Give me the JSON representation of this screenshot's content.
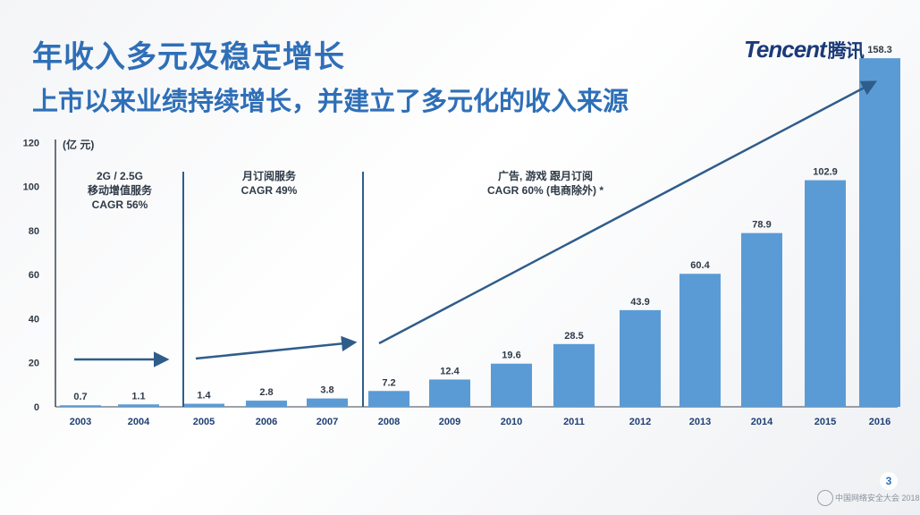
{
  "header": {
    "title": "年收入多元及稳定增长",
    "subtitle": "上市以来业绩持续增长，并建立了多元化的收入来源"
  },
  "logo": {
    "latin": "Tencent",
    "cn": "腾讯"
  },
  "page_number": "3",
  "footer": {
    "text": "中国网络安全大会 2018"
  },
  "colors": {
    "bar": "#5b9bd5",
    "accent": "#2e6fb7",
    "arrow": "#2f5d8a",
    "text": "#2f3a47"
  },
  "chart_data": {
    "type": "bar",
    "title": "",
    "xlabel": "",
    "ylabel": "(亿 元)",
    "ylim": [
      0,
      120
    ],
    "yticks": [
      "0",
      "20",
      "40",
      "60",
      "80",
      "100",
      "120"
    ],
    "grid": false,
    "categories": [
      "2003",
      "2004",
      "2005",
      "2006",
      "2007",
      "2008",
      "2009",
      "2010",
      "2011",
      "2012",
      "2013",
      "2014",
      "2015",
      "2016"
    ],
    "values": [
      0.7,
      1.1,
      1.4,
      2.8,
      3.8,
      7.2,
      12.4,
      19.6,
      28.5,
      43.9,
      60.4,
      78.9,
      102.9,
      158.3
    ],
    "data_labels": [
      "0.7",
      "1.1",
      "1.4",
      "2.8",
      "3.8",
      "7.2",
      "12.4",
      "19.6",
      "28.5",
      "43.9",
      "60.4",
      "78.9",
      "102.9",
      "158.3"
    ],
    "annotations": [
      {
        "id": "phase1",
        "lines": [
          "2G / 2.5G",
          "移动增值服务",
          "CAGR 56%"
        ]
      },
      {
        "id": "phase2",
        "lines": [
          "月订阅服务",
          "CAGR 49%"
        ]
      },
      {
        "id": "phase3",
        "lines": [
          "广告, 游戏 跟月订阅",
          "CAGR 60% (电商除外) *"
        ]
      }
    ]
  }
}
